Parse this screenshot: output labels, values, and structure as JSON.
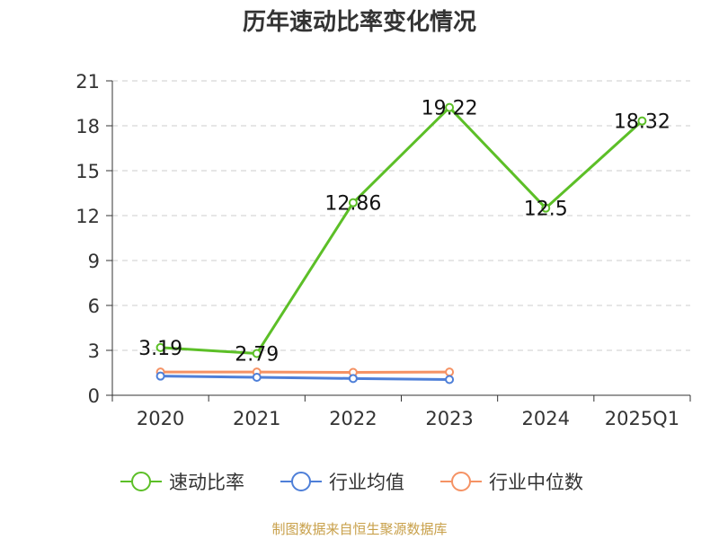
{
  "chart_data": {
    "type": "line",
    "title": "历年速动比率变化情况",
    "categories": [
      "2020",
      "2021",
      "2022",
      "2023",
      "2024",
      "2025Q1"
    ],
    "ylim": [
      0,
      21
    ],
    "yticks": [
      0,
      3,
      6,
      9,
      12,
      15,
      18,
      21
    ],
    "grid": true,
    "legend_position": "bottom",
    "series": [
      {
        "name": "速动比率",
        "values": [
          3.19,
          2.79,
          12.86,
          19.22,
          12.5,
          18.32
        ],
        "labels": [
          "3.19",
          "2.79",
          "12.86",
          "19.22",
          "12.5",
          "18.32"
        ],
        "color": "#5cbf27"
      },
      {
        "name": "行业均值",
        "values": [
          1.28,
          1.2,
          1.12,
          1.05,
          null,
          null
        ],
        "color": "#4e7fd8"
      },
      {
        "name": "行业中位数",
        "values": [
          1.55,
          1.55,
          1.53,
          1.55,
          null,
          null
        ],
        "color": "#f59264"
      }
    ],
    "source": "制图数据来自恒生聚源数据库"
  }
}
